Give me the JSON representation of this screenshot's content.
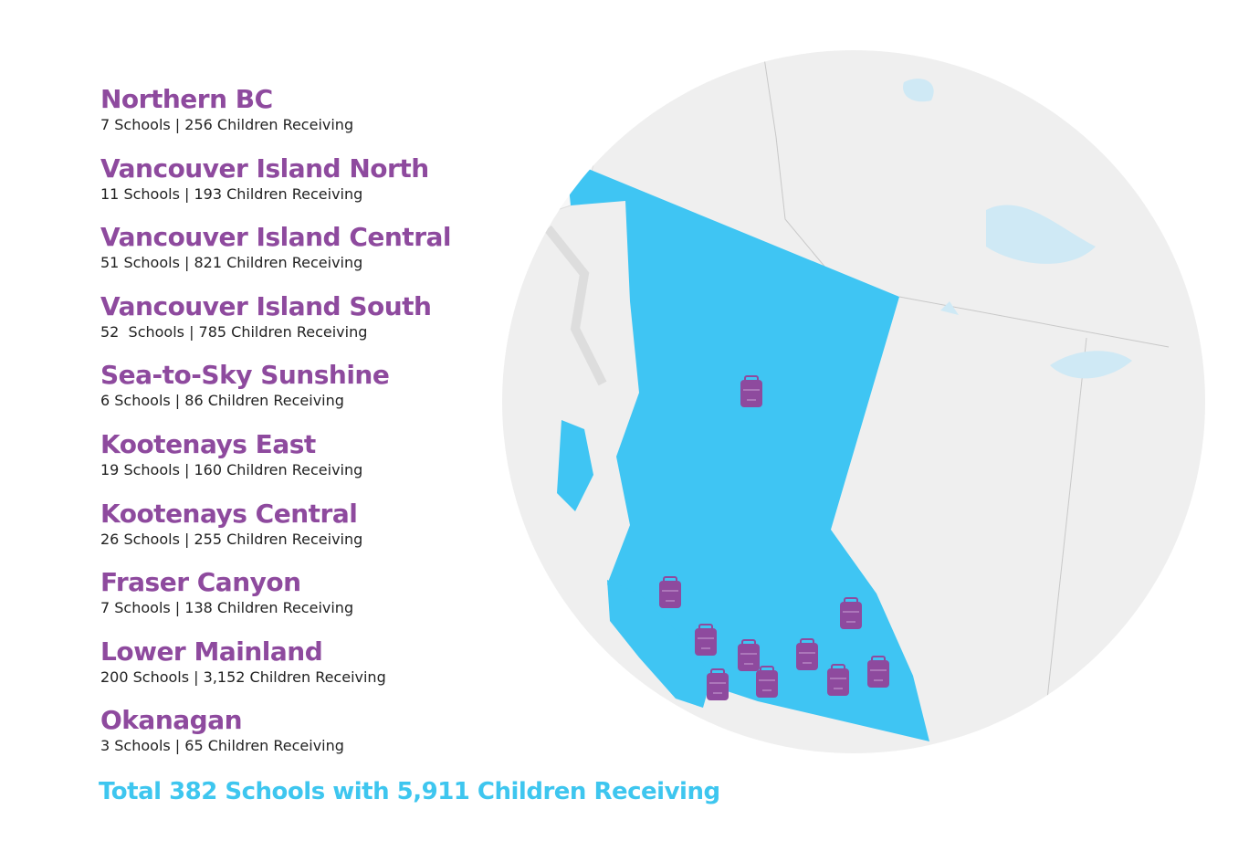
{
  "regions": [
    {
      "name": "Northern BC",
      "detail": "7 Schools | 256 Children Receiving"
    },
    {
      "name": "Vancouver Island North",
      "detail": "11 Schools | 193 Children Receiving"
    },
    {
      "name": "Vancouver Island Central",
      "detail": "51 Schools | 821 Children Receiving"
    },
    {
      "name": "Vancouver Island South",
      "detail": "52  Schools | 785 Children Receiving"
    },
    {
      "name": "Sea-to-Sky Sunshine",
      "detail": "6 Schools | 86 Children Receiving"
    },
    {
      "name": "Kootenays East",
      "detail": "19 Schools | 160 Children Receiving"
    },
    {
      "name": "Kootenays Central",
      "detail": "26 Schools | 255 Children Receiving"
    },
    {
      "name": "Fraser Canyon",
      "detail": "7 Schools | 138 Children Receiving"
    },
    {
      "name": "Lower Mainland",
      "detail": "200 Schools | 3,152 Children Receiving"
    },
    {
      "name": "Okanagan",
      "detail": "3 Schools | 65 Children Receiving"
    }
  ],
  "total": "Total 382 Schools with 5,911 Children Receiving"
}
